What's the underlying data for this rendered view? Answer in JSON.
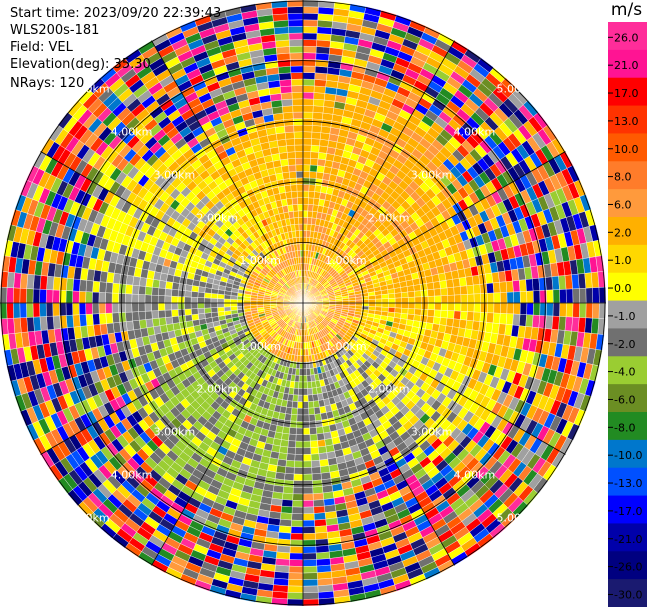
{
  "info": {
    "start_time": "Start time: 2023/09/20 22:39:43",
    "instrument": "WLS200s-181",
    "field": "Field: VEL",
    "elevation": "Elevation(deg): 35.30",
    "nrays": "NRays: 120"
  },
  "colorbar": {
    "title": "m/s",
    "ticks": [
      "26.0",
      "21.0",
      "17.0",
      "13.0",
      "10.0",
      "8.0",
      "6.0",
      "2.0",
      "1.0",
      "0.0",
      "-1.0",
      "-2.0",
      "-4.0",
      "-6.0",
      "-8.0",
      "-10.0",
      "-13.0",
      "-17.0",
      "-21.0",
      "-26.0",
      "-30.0"
    ],
    "colors": [
      "#ff2d9a",
      "#ff1493",
      "#ff0000",
      "#ff3300",
      "#ff5a00",
      "#ff7c2a",
      "#ff9a3c",
      "#ffb000",
      "#ffd800",
      "#ffff00",
      "#a0a0a0",
      "#707070",
      "#9acd32",
      "#6b8e23",
      "#228b22",
      "#0077cc",
      "#0050ff",
      "#0000ff",
      "#0000aa",
      "#000080",
      "#1a1a70"
    ]
  },
  "chart_data": {
    "type": "heatmap",
    "projection": "polar PPI",
    "field": "VEL",
    "units": "m/s",
    "nrays": 120,
    "max_range_km": 5.0,
    "range_rings_km": [
      1.0,
      2.0,
      3.0,
      4.0,
      5.0
    ],
    "range_ring_labels": [
      "1.00km",
      "2.00km",
      "3.00km",
      "4.00km",
      "5.00km"
    ],
    "value_range": [
      -30.0,
      26.0
    ],
    "structure": {
      "inner_region_km": [
        0,
        1.0
      ],
      "inner_region_values": "mostly 1.0 to 6.0 m/s with grey 0.0 patches",
      "north_and_east_sectors_0_to_3km": "2.0 to 6.0 m/s (yellow/orange)",
      "south_and_west_sectors_0_to_3km": "-2.0 to -6.0 m/s (green)",
      "beyond_3_5km": "noise, full value range"
    }
  }
}
